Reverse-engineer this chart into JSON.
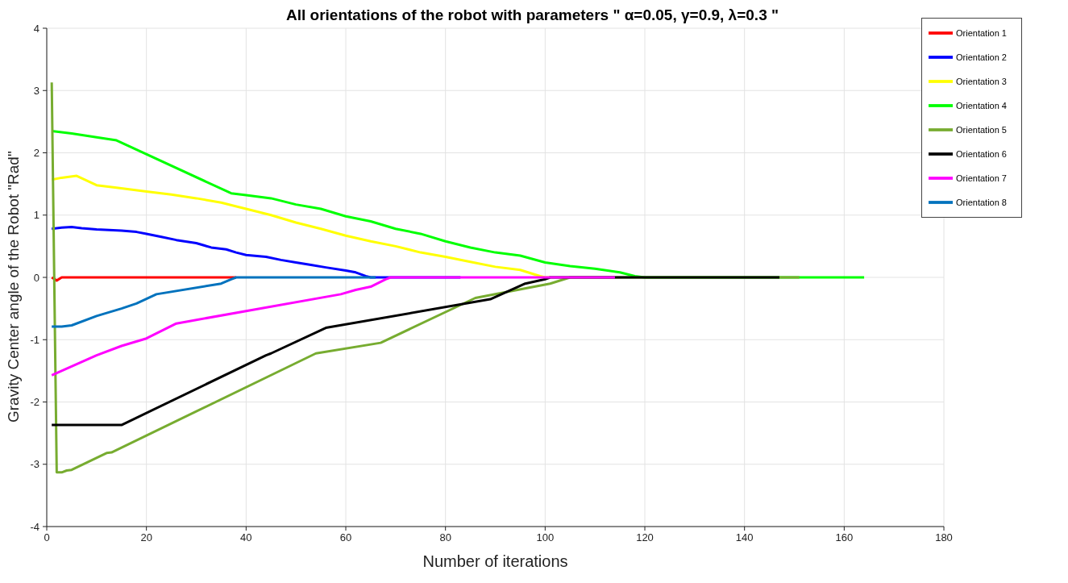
{
  "chart_data": {
    "type": "line",
    "title": "All orientations of the robot with parameters \" α=0.05, γ=0.9, λ=0.3 \"",
    "xlabel": "Number of iterations",
    "ylabel": "Gravity Center angle of the Robot \"Rad\"",
    "xlim": [
      0,
      180
    ],
    "xticks": [
      0,
      20,
      40,
      60,
      80,
      100,
      120,
      140,
      160,
      180
    ],
    "ylim": [
      -4,
      4
    ],
    "yticks": [
      -4,
      -3,
      -2,
      -1,
      0,
      1,
      2,
      3,
      4
    ],
    "grid": true,
    "legend": "top right",
    "marker": "none",
    "line_style": "solid",
    "series": [
      {
        "name": "Orientation 1",
        "color": "#ff0000",
        "x": [
          1,
          2,
          3,
          10,
          20,
          30,
          38
        ],
        "values": [
          0,
          -0.05,
          0,
          0,
          0,
          0,
          0
        ]
      },
      {
        "name": "Orientation 2",
        "color": "#0000ff",
        "x": [
          1,
          3,
          5,
          7,
          10,
          15,
          18,
          20,
          23,
          26,
          30,
          33,
          36,
          38,
          40,
          44,
          47,
          50,
          53,
          56,
          60,
          62,
          64,
          65,
          83
        ],
        "values": [
          0.78,
          0.8,
          0.81,
          0.79,
          0.77,
          0.75,
          0.73,
          0.7,
          0.65,
          0.6,
          0.55,
          0.48,
          0.45,
          0.4,
          0.36,
          0.33,
          0.28,
          0.24,
          0.2,
          0.16,
          0.11,
          0.08,
          0.02,
          0,
          0
        ]
      },
      {
        "name": "Orientation 3",
        "color": "#ffff00",
        "x": [
          1,
          3,
          6,
          10,
          14,
          20,
          25,
          30,
          35,
          40,
          45,
          50,
          55,
          60,
          65,
          70,
          75,
          80,
          85,
          90,
          95,
          99,
          100,
          101
        ],
        "values": [
          1.57,
          1.6,
          1.63,
          1.48,
          1.44,
          1.38,
          1.33,
          1.27,
          1.2,
          1.1,
          1.0,
          0.88,
          0.78,
          0.67,
          0.58,
          0.5,
          0.4,
          0.33,
          0.25,
          0.17,
          0.12,
          0.02,
          0,
          0
        ]
      },
      {
        "name": "Orientation 4",
        "color": "#00ff00",
        "x": [
          1,
          5,
          10,
          14,
          37,
          40,
          45,
          50,
          55,
          60,
          65,
          70,
          75,
          80,
          85,
          90,
          95,
          100,
          105,
          110,
          115,
          118,
          120,
          140,
          164
        ],
        "values": [
          2.35,
          2.31,
          2.25,
          2.2,
          1.35,
          1.32,
          1.27,
          1.17,
          1.1,
          0.98,
          0.9,
          0.78,
          0.7,
          0.58,
          0.48,
          0.4,
          0.35,
          0.24,
          0.18,
          0.14,
          0.08,
          0.02,
          0,
          0,
          0
        ]
      },
      {
        "name": "Orientation 5",
        "color": "#77ac30",
        "x": [
          1,
          2,
          3,
          4,
          5,
          12,
          13,
          54,
          67,
          86,
          101,
          105,
          151
        ],
        "values": [
          3.13,
          -3.13,
          -3.13,
          -3.1,
          -3.09,
          -2.82,
          -2.81,
          -1.22,
          -1.05,
          -0.33,
          -0.1,
          0,
          0
        ]
      },
      {
        "name": "Orientation 6",
        "color": "#000000",
        "x": [
          1,
          15,
          44,
          45,
          56,
          89,
          96,
          100,
          101,
          147
        ],
        "values": [
          -2.37,
          -2.37,
          -1.25,
          -1.22,
          -0.81,
          -0.35,
          -0.1,
          -0.03,
          0,
          0
        ]
      },
      {
        "name": "Orientation 7",
        "color": "#ff00ff",
        "x": [
          1,
          10,
          15,
          20,
          26,
          59,
          62,
          65,
          68,
          69,
          114
        ],
        "values": [
          -1.57,
          -1.25,
          -1.1,
          -0.98,
          -0.74,
          -0.27,
          -0.2,
          -0.15,
          -0.03,
          0,
          0
        ]
      },
      {
        "name": "Orientation 8",
        "color": "#0072bd",
        "x": [
          1,
          3,
          5,
          10,
          15,
          18,
          22,
          35,
          37,
          38,
          66
        ],
        "values": [
          -0.79,
          -0.79,
          -0.77,
          -0.62,
          -0.5,
          -0.42,
          -0.27,
          -0.1,
          -0.03,
          0,
          0
        ]
      }
    ]
  }
}
